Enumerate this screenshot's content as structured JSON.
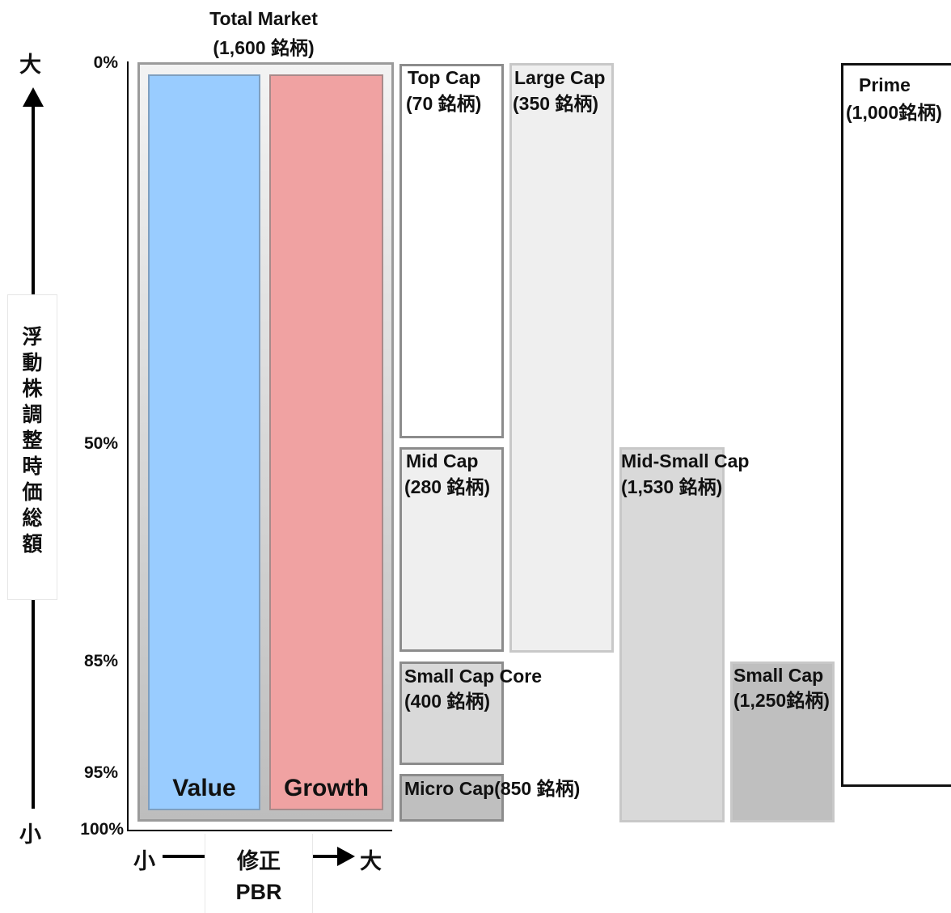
{
  "axis": {
    "top_label": "大",
    "bottom_label": "小",
    "vertical_title": "浮動株調整時価総額",
    "percentages": [
      "0%",
      "50%",
      "85%",
      "95%",
      "100%"
    ]
  },
  "total_market": {
    "title": "Total Market",
    "count": "(1,600 銘柄)",
    "value_label": "Value",
    "growth_label": "Growth"
  },
  "segments": {
    "top_cap": {
      "name": "Top Cap",
      "count": "(70 銘柄)"
    },
    "mid_cap": {
      "name": "Mid Cap",
      "count": "(280 銘柄)"
    },
    "small_cap_core": {
      "name": "Small Cap Core",
      "count": "(400 銘柄)"
    },
    "micro_cap": {
      "name": "Micro Cap(850 銘柄)"
    },
    "large_cap": {
      "name": "Large Cap",
      "count": "(350 銘柄)"
    },
    "mid_small_cap": {
      "name": "Mid-Small Cap",
      "count": "(1,530 銘柄)"
    },
    "small_cap": {
      "name": "Small Cap",
      "count": "(1,250銘柄)"
    },
    "prime": {
      "name": "Prime",
      "count": "(1,000銘柄)"
    }
  },
  "pbr_axis": {
    "small": "小",
    "large": "大",
    "title_line1": "修正",
    "title_line2": "PBR"
  },
  "colors": {
    "value": "#99ccff",
    "growth": "#f0a2a2",
    "light_gray": "#efefef",
    "mid_gray": "#d9d9d9",
    "dark_gray": "#bfbfbf"
  }
}
